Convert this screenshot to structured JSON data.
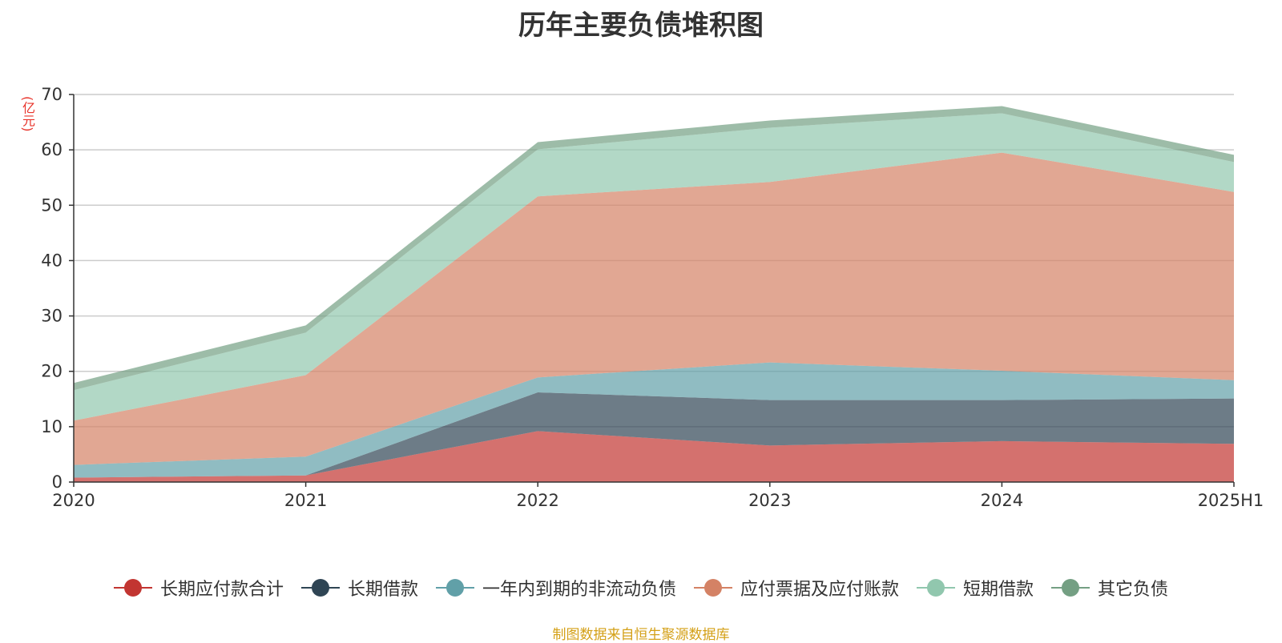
{
  "title": "历年主要负债堆积图",
  "unit_label": "(亿元)",
  "source_note": "制图数据来自恒生聚源数据库",
  "chart_data": {
    "type": "area",
    "stacked": true,
    "categories": [
      "2020",
      "2021",
      "2022",
      "2023",
      "2024",
      "2025H1"
    ],
    "ylim": [
      0,
      70
    ],
    "yticks": [
      0,
      10,
      20,
      30,
      40,
      50,
      60,
      70
    ],
    "grid": true,
    "legend_position": "bottom",
    "series": [
      {
        "name": "长期应付款合计",
        "color": "#c23531",
        "values": [
          0.8,
          1.2,
          9.2,
          6.6,
          7.4,
          6.9
        ]
      },
      {
        "name": "长期借款",
        "color": "#2f4554",
        "values": [
          0.0,
          0.0,
          7.0,
          8.2,
          7.4,
          8.2
        ]
      },
      {
        "name": "一年内到期的非流动负债",
        "color": "#61a0a8",
        "values": [
          2.3,
          3.4,
          2.7,
          6.8,
          5.3,
          3.3
        ]
      },
      {
        "name": "应付票据及应付账款",
        "color": "#d48265",
        "values": [
          8.0,
          14.7,
          32.7,
          32.6,
          39.4,
          34.0
        ]
      },
      {
        "name": "短期借款",
        "color": "#91c7ae",
        "values": [
          5.5,
          7.7,
          8.5,
          9.8,
          7.1,
          5.4
        ]
      },
      {
        "name": "其它负债",
        "color": "#749f83",
        "values": [
          1.3,
          1.3,
          1.3,
          1.3,
          1.3,
          1.3
        ]
      }
    ]
  }
}
